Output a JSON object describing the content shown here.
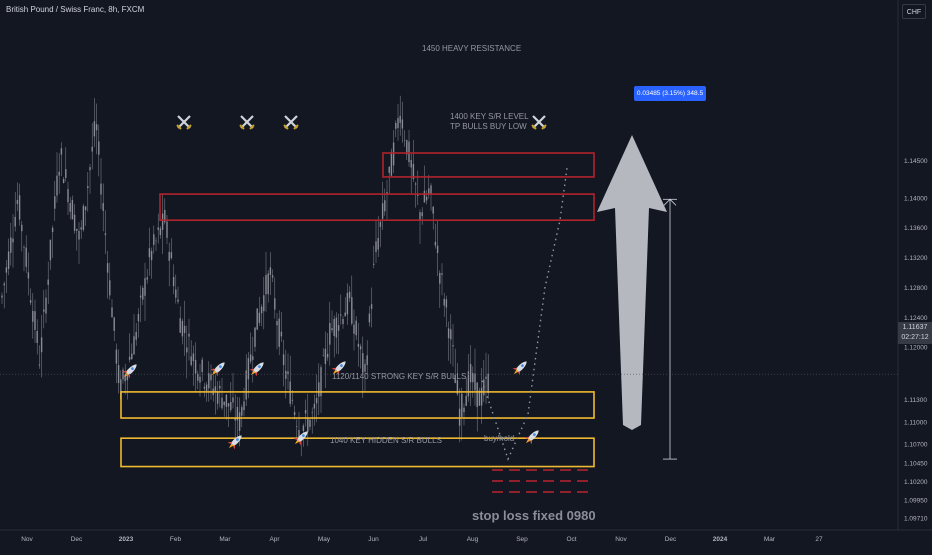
{
  "header": {
    "title": "British Pound / Swiss Franc, 8h, FXCM",
    "currency_button": "CHF"
  },
  "price_tag": {
    "price": "1.11637",
    "countdown": "02:27:12"
  },
  "measure_label": "0.03485 (3.15%) 348.5",
  "annotations": {
    "resistance": "1450 HEAVY RESISTANCE",
    "key_level_line1": "1400 KEY S/R LEVEL",
    "key_level_line2": "TP BULLS BUY LOW",
    "strong_support": "1120/1140 STRONG KEY S/R BULLS",
    "hidden_support": "1040 KEY HIDDEN S/R BULLS",
    "buy_hold": "buy/hold",
    "stop_loss": "stop loss fixed 0980"
  },
  "colors": {
    "background": "#131722",
    "candle": "#8a8d95",
    "resistance_box": "#b2232c",
    "support_box": "#f0b92f",
    "arrow": "#b5b8bf",
    "measure": "#2962ff"
  },
  "icons": {
    "crossed_swords_count": 4,
    "rocket_count": 8
  },
  "chart_data": {
    "type": "candlestick",
    "title": "British Pound / Swiss Franc, 8h, FXCM",
    "ylim": [
      1.0955,
      1.1665
    ],
    "y_ticks": [
      "1.14500",
      "1.14000",
      "1.13600",
      "1.13200",
      "1.12800",
      "1.12400",
      "1.12000",
      "1.11300",
      "1.11000",
      "1.10700",
      "1.10450",
      "1.10200",
      "1.09950",
      "1.09710"
    ],
    "x_ticks": [
      "Nov",
      "Dec",
      "2023",
      "Feb",
      "Mar",
      "Apr",
      "May",
      "Jun",
      "Jul",
      "Aug",
      "Sep",
      "Oct",
      "Nov",
      "Dec",
      "2024",
      "Mar",
      "27"
    ],
    "last_price": 1.11637,
    "zones": [
      {
        "name": "1450 HEAVY RESISTANCE",
        "from": 1.1428,
        "to": 1.146
      },
      {
        "name": "1400 KEY S/R LEVEL",
        "from": 1.137,
        "to": 1.1405
      },
      {
        "name": "1120/1140 STRONG KEY S/R BULLS",
        "from": 1.1105,
        "to": 1.114
      },
      {
        "name": "1040 KEY HIDDEN S/R BULLS",
        "from": 1.104,
        "to": 1.1078
      }
    ],
    "measure": {
      "from": 1.105,
      "to": 1.1398,
      "label": "0.03485 (3.15%) 348.5"
    },
    "close_path": [
      [
        0,
        1.125
      ],
      [
        18,
        1.14
      ],
      [
        40,
        1.118
      ],
      [
        60,
        1.146
      ],
      [
        80,
        1.134
      ],
      [
        96,
        1.15
      ],
      [
        110,
        1.128
      ],
      [
        120,
        1.114
      ],
      [
        135,
        1.121
      ],
      [
        150,
        1.132
      ],
      [
        165,
        1.137
      ],
      [
        180,
        1.124
      ],
      [
        195,
        1.118
      ],
      [
        210,
        1.115
      ],
      [
        225,
        1.113
      ],
      [
        240,
        1.11
      ],
      [
        255,
        1.122
      ],
      [
        270,
        1.13
      ],
      [
        285,
        1.117
      ],
      [
        300,
        1.109
      ],
      [
        315,
        1.111
      ],
      [
        330,
        1.122
      ],
      [
        350,
        1.126
      ],
      [
        365,
        1.116
      ],
      [
        375,
        1.132
      ],
      [
        390,
        1.143
      ],
      [
        400,
        1.152
      ],
      [
        410,
        1.145
      ],
      [
        420,
        1.138
      ],
      [
        430,
        1.141
      ],
      [
        440,
        1.13
      ],
      [
        450,
        1.122
      ],
      [
        460,
        1.111
      ],
      [
        470,
        1.116
      ],
      [
        480,
        1.113
      ],
      [
        490,
        1.116
      ]
    ]
  }
}
